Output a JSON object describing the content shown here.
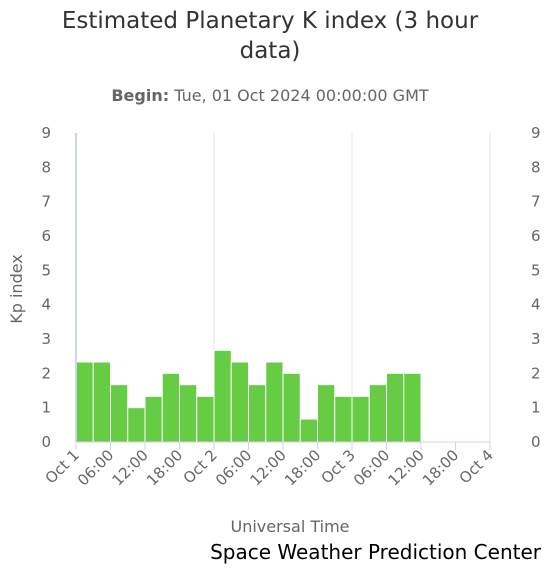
{
  "chart_data": {
    "type": "bar",
    "title_line1": "Estimated Planetary K index (3 hour",
    "title_line2": "data)",
    "subtitle_label": "Begin:",
    "subtitle_value": "Tue, 01 Oct 2024 00:00:00 GMT",
    "ylabel": "Kp index",
    "xlabel": "Universal Time",
    "credit": "Space Weather Prediction Center",
    "ylim": [
      0,
      9
    ],
    "yticks": [
      "0",
      "1",
      "2",
      "3",
      "4",
      "5",
      "6",
      "7",
      "8",
      "9"
    ],
    "xlim_hours": [
      0,
      72
    ],
    "xtick_labels": [
      "Oct 1",
      "06:00",
      "12:00",
      "18:00",
      "Oct 2",
      "06:00",
      "12:00",
      "18:00",
      "Oct 3",
      "06:00",
      "12:00",
      "18:00",
      "Oct 4"
    ],
    "values": [
      2.33,
      2.33,
      1.67,
      1.0,
      1.33,
      2.0,
      1.67,
      1.33,
      2.67,
      2.33,
      1.67,
      2.33,
      2.0,
      0.67,
      1.67,
      1.33,
      1.33,
      1.67,
      2.0,
      2.0
    ],
    "bar_color": "#66cc44",
    "grid": "vertical"
  }
}
